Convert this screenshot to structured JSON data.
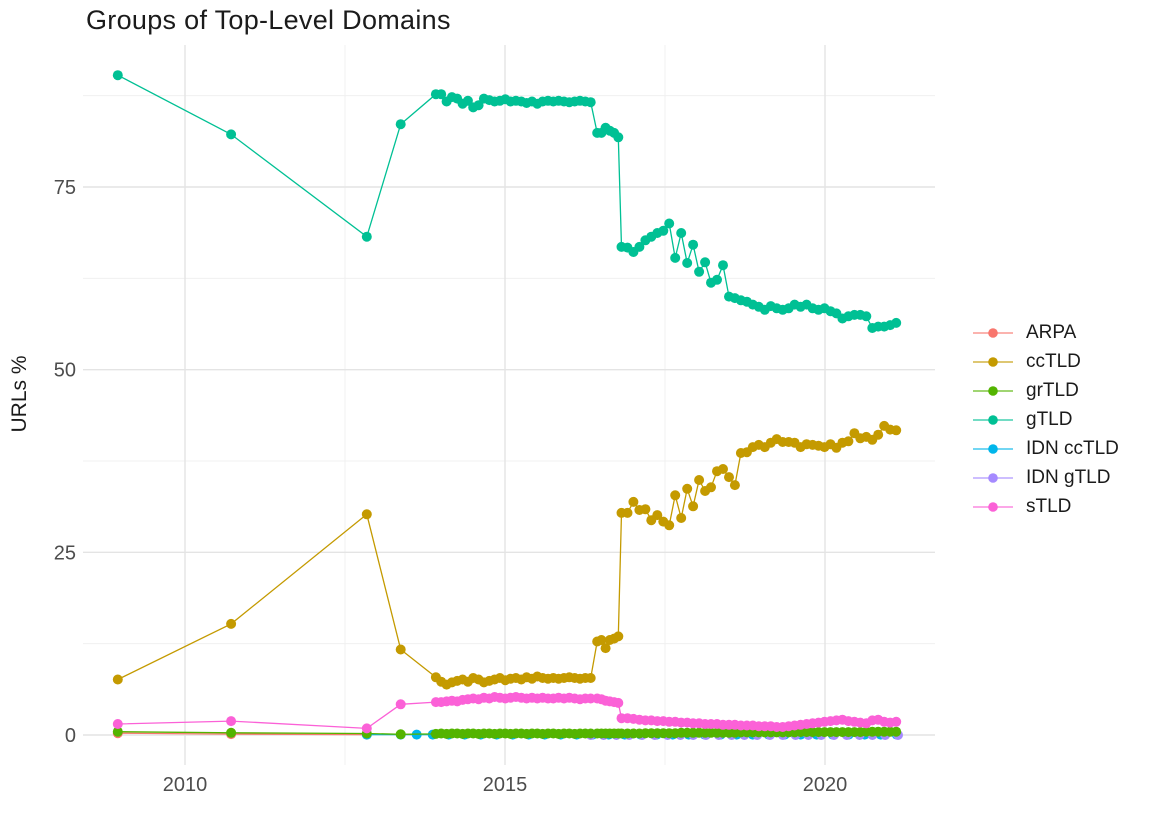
{
  "title": "Groups of Top-Level Domains",
  "chart_data": {
    "type": "line",
    "title": "Groups of Top-Level Domains",
    "xlabel": "",
    "ylabel": "URLs %",
    "x_ticks": [
      2010,
      2015,
      2020
    ],
    "x_minor": [
      2012.5,
      2017.5
    ],
    "y_ticks": [
      0,
      25,
      50,
      75
    ],
    "y_minor": [
      12.5,
      37.5,
      62.5,
      87.5
    ],
    "xlim": [
      2008.4,
      2021.7
    ],
    "ylim": [
      -4.2,
      94.5
    ],
    "grid": true,
    "legend_position": "right",
    "marker": "point+line",
    "draw_order": [
      "ARPA",
      "IDN ccTLD",
      "IDN gTLD",
      "grTLD",
      "ccTLD",
      "gTLD",
      "sTLD"
    ],
    "series": [
      {
        "name": "ARPA",
        "color": "#F8766D",
        "segments": [
          {
            "points": [
              [
                2008.95,
                0.25
              ],
              [
                2010.72,
                0.12
              ],
              [
                2012.84,
                0.05
              ]
            ]
          }
        ]
      },
      {
        "name": "ccTLD",
        "color": "#C49A00",
        "segments": [
          {
            "points": [
              [
                2008.95,
                7.6
              ],
              [
                2010.72,
                15.2
              ],
              [
                2012.84,
                30.2
              ],
              [
                2013.37,
                11.7
              ]
            ]
          },
          {
            "x0": 2013.92,
            "dx": 0.0834,
            "values": [
              7.9,
              7.3,
              6.9,
              7.2,
              7.4,
              7.6,
              7.3,
              7.8,
              7.6,
              7.2,
              7.4,
              7.6,
              7.8,
              7.5,
              7.7,
              7.8,
              7.6,
              7.9,
              7.7,
              8.0,
              7.8,
              7.7,
              7.8,
              7.7,
              7.8,
              7.9,
              7.8,
              7.7,
              7.8,
              7.8
            ]
          },
          {
            "x0": 2016.44,
            "dx": 0.066,
            "values": [
              12.8,
              13.0,
              11.9,
              13.0,
              13.2,
              13.5
            ]
          },
          {
            "x0": 2016.82,
            "dx": 0.0933,
            "values": [
              30.4,
              30.4,
              31.9,
              30.8,
              30.9,
              29.4,
              30.1,
              29.2,
              28.7,
              32.8,
              29.7,
              33.7,
              31.3,
              34.9,
              33.4,
              33.9,
              36.1,
              36.4,
              35.3,
              34.2,
              38.6,
              38.7,
              39.4,
              39.7,
              39.4,
              40.0,
              40.5,
              40.1,
              40.1,
              40.0,
              39.4,
              39.8,
              39.7,
              39.6,
              39.4,
              39.8,
              39.3,
              40.0,
              40.2,
              41.3,
              40.6,
              40.8,
              40.4,
              41.1,
              42.3,
              41.8,
              41.7
            ]
          }
        ]
      },
      {
        "name": "grTLD",
        "color": "#53B400",
        "segments": [
          {
            "points": [
              [
                2008.95,
                0.45
              ],
              [
                2010.72,
                0.3
              ],
              [
                2012.84,
                0.2
              ],
              [
                2013.37,
                0.1
              ]
            ]
          },
          {
            "x0": 2013.92,
            "dx": 0.0834,
            "values": [
              0.15,
              0.2,
              0.15,
              0.2,
              0.2,
              0.15,
              0.2,
              0.2,
              0.15,
              0.2,
              0.2,
              0.15,
              0.2,
              0.2,
              0.15,
              0.2,
              0.2,
              0.15,
              0.2,
              0.2,
              0.15,
              0.2,
              0.2,
              0.15,
              0.2,
              0.2,
              0.15,
              0.2,
              0.2,
              0.2
            ]
          },
          {
            "x0": 2016.44,
            "dx": 0.066,
            "values": [
              0.2,
              0.2,
              0.2,
              0.2,
              0.2,
              0.2
            ]
          },
          {
            "x0": 2016.82,
            "dx": 0.0933,
            "values": [
              0.2,
              0.2,
              0.2,
              0.2,
              0.25,
              0.25,
              0.25,
              0.25,
              0.25,
              0.25,
              0.3,
              0.3,
              0.3,
              0.3,
              0.3,
              0.3,
              0.3,
              0.3,
              0.3,
              0.3,
              0.35,
              0.35,
              0.35,
              0.35,
              0.35,
              0.35,
              0.35,
              0.35,
              0.35,
              0.35,
              0.4,
              0.4,
              0.4,
              0.4,
              0.4,
              0.4,
              0.4,
              0.4,
              0.4,
              0.4,
              0.4,
              0.45,
              0.45,
              0.45,
              0.45,
              0.45,
              0.45
            ]
          }
        ]
      },
      {
        "name": "gTLD",
        "color": "#00C094",
        "segments": [
          {
            "points": [
              [
                2008.95,
                90.3
              ],
              [
                2010.72,
                82.2
              ],
              [
                2012.84,
                68.2
              ],
              [
                2013.37,
                83.6
              ]
            ]
          },
          {
            "x0": 2013.92,
            "dx": 0.0834,
            "values": [
              87.7,
              87.7,
              86.7,
              87.3,
              87.1,
              86.4,
              86.8,
              85.9,
              86.2,
              87.1,
              86.9,
              86.7,
              86.8,
              87.0,
              86.7,
              86.8,
              86.7,
              86.5,
              86.7,
              86.4,
              86.7,
              86.8,
              86.7,
              86.8,
              86.7,
              86.6,
              86.7,
              86.8,
              86.7,
              86.6
            ]
          },
          {
            "x0": 2016.44,
            "dx": 0.066,
            "values": [
              82.4,
              82.4,
              83.1,
              82.7,
              82.4,
              81.8
            ]
          },
          {
            "x0": 2016.82,
            "dx": 0.0933,
            "values": [
              66.8,
              66.7,
              66.1,
              66.8,
              67.7,
              68.2,
              68.7,
              69.0,
              70.0,
              65.3,
              68.7,
              64.6,
              67.1,
              63.4,
              64.7,
              61.9,
              62.3,
              64.3,
              60.0,
              59.8,
              59.5,
              59.3,
              58.9,
              58.6,
              58.2,
              58.7,
              58.4,
              58.2,
              58.4,
              58.9,
              58.6,
              58.9,
              58.4,
              58.2,
              58.4,
              58.0,
              57.7,
              57.0,
              57.3,
              57.5,
              57.5,
              57.3,
              55.7,
              55.9,
              55.9,
              56.1,
              56.4
            ]
          }
        ]
      },
      {
        "name": "IDN ccTLD",
        "color": "#00B6EB",
        "segments": [
          {
            "points": [
              [
                2012.84,
                0.05
              ]
            ]
          },
          {
            "x0": 2013.37,
            "dx": 0.25,
            "values": [
              0.05,
              0.05,
              0.05,
              0.05,
              0.05,
              0.05,
              0.05,
              0.05,
              0.05,
              0.05,
              0.05,
              0.05,
              0.05,
              0.05,
              0.05,
              0.05,
              0.05,
              0.05,
              0.05,
              0.05,
              0.05,
              0.05,
              0.05,
              0.05,
              0.05,
              0.05,
              0.05,
              0.05,
              0.05,
              0.05,
              0.05,
              0.05
            ]
          }
        ]
      },
      {
        "name": "IDN gTLD",
        "color": "#A58AFF",
        "segments": [
          {
            "x0": 2016.34,
            "dx": 0.2,
            "values": [
              0,
              0,
              0,
              0,
              0,
              0,
              0,
              0,
              0,
              0,
              0,
              0,
              0,
              0,
              0,
              0,
              0,
              0,
              0,
              0,
              0,
              0,
              0,
              0,
              0
            ]
          }
        ]
      },
      {
        "name": "sTLD",
        "color": "#FB61D7",
        "segments": [
          {
            "points": [
              [
                2008.95,
                1.5
              ],
              [
                2010.72,
                1.9
              ],
              [
                2012.84,
                0.9
              ],
              [
                2013.37,
                4.2
              ]
            ]
          },
          {
            "x0": 2013.92,
            "dx": 0.0834,
            "values": [
              4.5,
              4.5,
              4.6,
              4.7,
              4.6,
              4.8,
              4.9,
              5.0,
              4.9,
              5.1,
              5.0,
              5.2,
              5.1,
              5.0,
              5.1,
              5.2,
              5.1,
              5.0,
              5.1,
              5.0,
              5.1,
              5.0,
              5.0,
              5.1,
              5.0,
              5.1,
              5.0,
              4.9,
              5.0,
              5.0
            ]
          },
          {
            "x0": 2016.44,
            "dx": 0.066,
            "values": [
              5.0,
              4.9,
              4.7,
              4.6,
              4.5,
              4.4
            ]
          },
          {
            "x0": 2016.82,
            "dx": 0.0933,
            "values": [
              2.3,
              2.3,
              2.2,
              2.1,
              2.0,
              2.0,
              1.9,
              1.9,
              1.8,
              1.8,
              1.7,
              1.7,
              1.6,
              1.6,
              1.5,
              1.5,
              1.5,
              1.4,
              1.4,
              1.4,
              1.3,
              1.3,
              1.3,
              1.2,
              1.2,
              1.2,
              1.1,
              1.1,
              1.2,
              1.3,
              1.4,
              1.5,
              1.6,
              1.7,
              1.8,
              1.9,
              2.0,
              2.1,
              1.9,
              1.8,
              1.7,
              1.6,
              2.0,
              2.1,
              1.8,
              1.7,
              1.8
            ]
          }
        ]
      }
    ]
  }
}
